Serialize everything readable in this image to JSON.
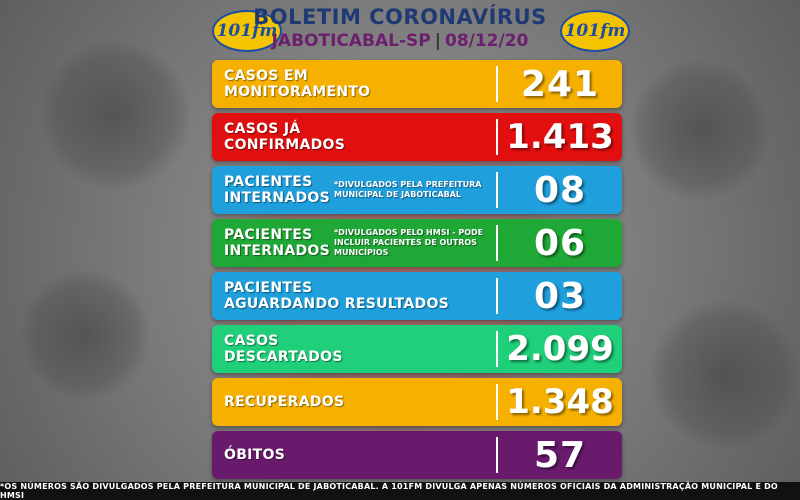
{
  "header": {
    "title": "BOLETIM CORONAVÍRUS",
    "city": "JABOTICABAL-SP",
    "separator": "|",
    "date": "08/12/20",
    "logo_text": "101fm"
  },
  "colors": {
    "monitoramento": "#f6b000",
    "confirmados": "#e10f0f",
    "internados_blue": "#1f9fdc",
    "internados_green": "#1fa836",
    "aguardando": "#1f9fdc",
    "descartados": "#20cf7a",
    "recuperados": "#f6b000",
    "obitos": "#6a1a6d"
  },
  "rows": [
    {
      "line1": "CASOS EM",
      "line2": "MONITORAMENTO",
      "note": "",
      "value": "241"
    },
    {
      "line1": "CASOS JÁ",
      "line2": "CONFIRMADOS",
      "note": "",
      "value": "1.413"
    },
    {
      "line1": "PACIENTES",
      "line2": "INTERNADOS",
      "note": "*DIVULGADOS PELA PREFEITURA MUNICIPAL DE JABOTICABAL",
      "value": "08"
    },
    {
      "line1": "PACIENTES",
      "line2": "INTERNADOS",
      "note": "*DIVULGADOS PELO HMSI - PODE INCLUIR PACIENTES DE OUTROS MUNICÍPIOS",
      "value": "06"
    },
    {
      "line1": "PACIENTES",
      "line2": "AGUARDANDO RESULTADOS",
      "note": "",
      "value": "03"
    },
    {
      "line1": "CASOS",
      "line2": "DESCARTADOS",
      "note": "",
      "value": "2.099"
    },
    {
      "line1": "RECUPERADOS",
      "line2": "",
      "note": "",
      "value": "1.348"
    },
    {
      "line1": "ÓBITOS",
      "line2": "",
      "note": "",
      "value": "57"
    }
  ],
  "footer": {
    "text": "*OS NÚMEROS SÃO DIVULGADOS PELA PREFEITURA MUNICIPAL DE JABOTICABAL. A 101FM DIVULGA APENAS NÚMEROS OFICIAIS DA ADMINISTRAÇÃO MUNICIPAL E DO HMSI"
  }
}
